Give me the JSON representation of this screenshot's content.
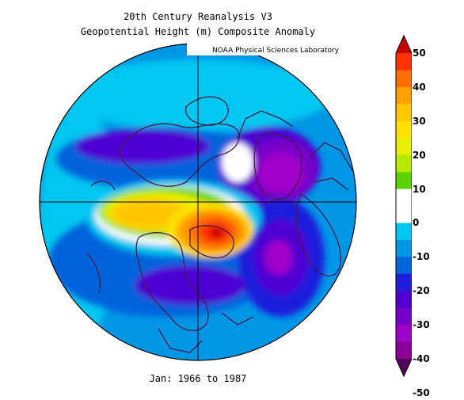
{
  "header": {
    "title_line1": "20th Century Reanalysis V3",
    "title_line2": "Geopotential Height (m) Composite Anomaly",
    "credit": "NOAA Physical Sciences Laboratory"
  },
  "caption": "Jan: 1966 to 1987",
  "projection": "north-polar-stereographic",
  "colorbar": {
    "levels": [
      -50,
      -45,
      -40,
      -35,
      -30,
      -25,
      -20,
      -15,
      -10,
      -5,
      0,
      5,
      10,
      15,
      20,
      25,
      30,
      35,
      40,
      45,
      50
    ],
    "labels": [
      "50",
      "40",
      "30",
      "20",
      "10",
      "0",
      "-10",
      "-20",
      "-30",
      "-40",
      "-50"
    ],
    "colors_top_to_bottom": [
      "#c80000",
      "#ff3200",
      "#ff6e00",
      "#ffa000",
      "#ffc800",
      "#ffe100",
      "#e6f000",
      "#b4eb00",
      "#5ad200",
      "#ffffff",
      "#ffffff",
      "#00c8f0",
      "#0096e6",
      "#0064dc",
      "#1e1edc",
      "#5000d2",
      "#7800c8",
      "#a000c8",
      "#8c0096",
      "#50005a"
    ]
  },
  "legend_colors": {
    "coast": "#4a1a4a",
    "grid": "#000000"
  }
}
